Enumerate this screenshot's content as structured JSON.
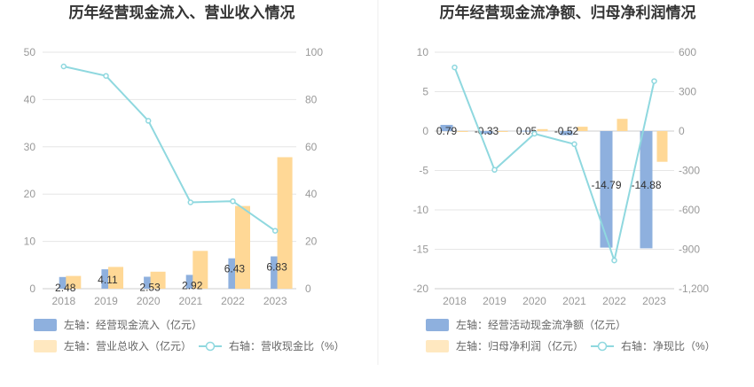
{
  "chart_data": [
    {
      "type": "bar",
      "title": "历年经营现金流入、营业收入情况",
      "categories": [
        "2018",
        "2019",
        "2020",
        "2021",
        "2022",
        "2023"
      ],
      "left_axis": {
        "ylim": [
          0,
          50
        ],
        "ticks": [
          "0",
          "10",
          "20",
          "30",
          "40",
          "50"
        ]
      },
      "right_axis": {
        "ylim": [
          0,
          100
        ],
        "ticks": [
          "0",
          "20",
          "40",
          "60",
          "80",
          "100"
        ]
      },
      "series": [
        {
          "name": "左轴：经营现金流入（亿元）",
          "type": "bar",
          "axis": "left",
          "color": "#8eb0de",
          "values": [
            2.48,
            4.11,
            2.53,
            2.92,
            6.43,
            6.83
          ],
          "labels": [
            "2.48",
            "4.11",
            "2.53",
            "2.92",
            "6.43",
            "6.83"
          ]
        },
        {
          "name": "左轴：营业总收入（亿元）",
          "type": "bar",
          "axis": "left",
          "color": "#ffd896",
          "values": [
            2.7,
            4.6,
            3.6,
            8.0,
            17.5,
            27.8
          ]
        },
        {
          "name": "右轴：营收现金比（%）",
          "type": "line",
          "axis": "right",
          "color": "#8fd8df",
          "values": [
            94,
            90,
            71,
            36.5,
            37,
            24.5
          ]
        }
      ],
      "legend_position": "bottom"
    },
    {
      "type": "bar",
      "title": "历年经营现金流净额、归母净利润情况",
      "categories": [
        "2018",
        "2019",
        "2020",
        "2021",
        "2022",
        "2023"
      ],
      "left_axis": {
        "ylim": [
          -20,
          10
        ],
        "ticks": [
          "-20",
          "-15",
          "-10",
          "-5",
          "0",
          "5",
          "10"
        ]
      },
      "right_axis": {
        "ylim": [
          -1200,
          600
        ],
        "ticks": [
          "-1,200",
          "-900",
          "-600",
          "-300",
          "0",
          "300",
          "600"
        ]
      },
      "series": [
        {
          "name": "左轴：经营活动现金流净额（亿元）",
          "type": "bar",
          "axis": "left",
          "color": "#8eb0de",
          "values": [
            0.79,
            -0.33,
            0.05,
            -0.52,
            -14.79,
            -14.88
          ],
          "labels": [
            "0.79",
            "-0.33",
            "0.05",
            "-0.52",
            "-14.79",
            "-14.88"
          ]
        },
        {
          "name": "左轴：归母净利润（亿元）",
          "type": "bar",
          "axis": "left",
          "color": "#ffd896",
          "values": [
            -0.1,
            -0.05,
            0.25,
            0.55,
            1.55,
            -3.9
          ]
        },
        {
          "name": "右轴：净现比（%）",
          "type": "line",
          "axis": "right",
          "color": "#8fd8df",
          "values": [
            485,
            -295,
            -20,
            -100,
            -985,
            380
          ]
        }
      ],
      "legend_position": "bottom"
    }
  ]
}
